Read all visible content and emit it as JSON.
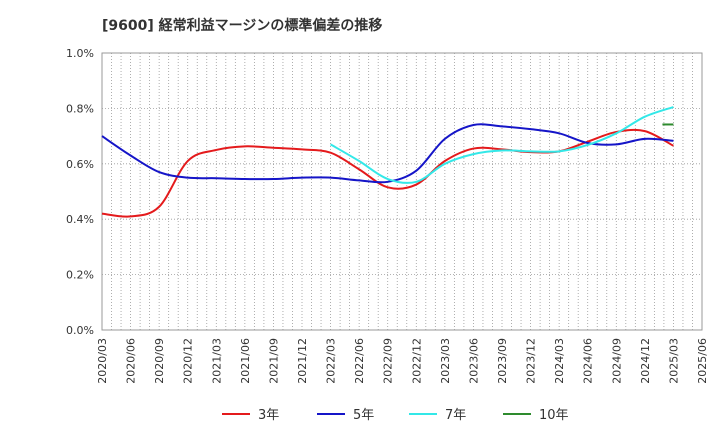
{
  "chart_data": {
    "type": "line",
    "title": "[9600]  経常利益マージンの標準偏差の推移",
    "xlabel": "",
    "ylabel": "",
    "ylim": [
      0,
      1.0
    ],
    "grid": true,
    "legend_position": "bottom",
    "yticks": [
      "0.0%",
      "0.2%",
      "0.4%",
      "0.6%",
      "0.8%",
      "1.0%"
    ],
    "x": [
      "2020/03",
      "2020/06",
      "2020/09",
      "2020/12",
      "2021/03",
      "2021/06",
      "2021/09",
      "2021/12",
      "2022/03",
      "2022/06",
      "2022/09",
      "2022/12",
      "2023/03",
      "2023/06",
      "2023/09",
      "2023/12",
      "2024/03",
      "2024/06",
      "2024/09",
      "2024/12",
      "2025/03",
      "2025/06"
    ],
    "series": [
      {
        "name": "3年",
        "color": "#e41a1c",
        "values": [
          0.42,
          0.41,
          0.445,
          0.61,
          0.65,
          0.663,
          0.658,
          0.652,
          0.64,
          0.58,
          0.515,
          0.525,
          0.61,
          0.655,
          0.652,
          0.642,
          0.645,
          0.68,
          0.715,
          0.718,
          0.665,
          null
        ]
      },
      {
        "name": "5年",
        "color": "#1515c8",
        "values": [
          0.7,
          0.63,
          0.57,
          0.55,
          0.548,
          0.545,
          0.545,
          0.55,
          0.55,
          0.54,
          0.535,
          0.575,
          0.69,
          0.74,
          0.735,
          0.725,
          0.71,
          0.675,
          0.67,
          0.69,
          0.683,
          null
        ]
      },
      {
        "name": "7年",
        "color": "#33e8e8",
        "values": [
          null,
          null,
          null,
          null,
          null,
          null,
          null,
          null,
          0.67,
          0.61,
          0.545,
          0.535,
          0.6,
          0.635,
          0.648,
          0.645,
          0.645,
          0.668,
          0.71,
          0.77,
          0.805,
          null
        ]
      },
      {
        "name": "10年",
        "color": "#2e8b2e",
        "values": [
          null,
          null,
          null,
          null,
          null,
          null,
          null,
          null,
          null,
          null,
          null,
          null,
          null,
          null,
          null,
          null,
          null,
          null,
          null,
          null,
          0.742,
          null
        ]
      }
    ]
  }
}
